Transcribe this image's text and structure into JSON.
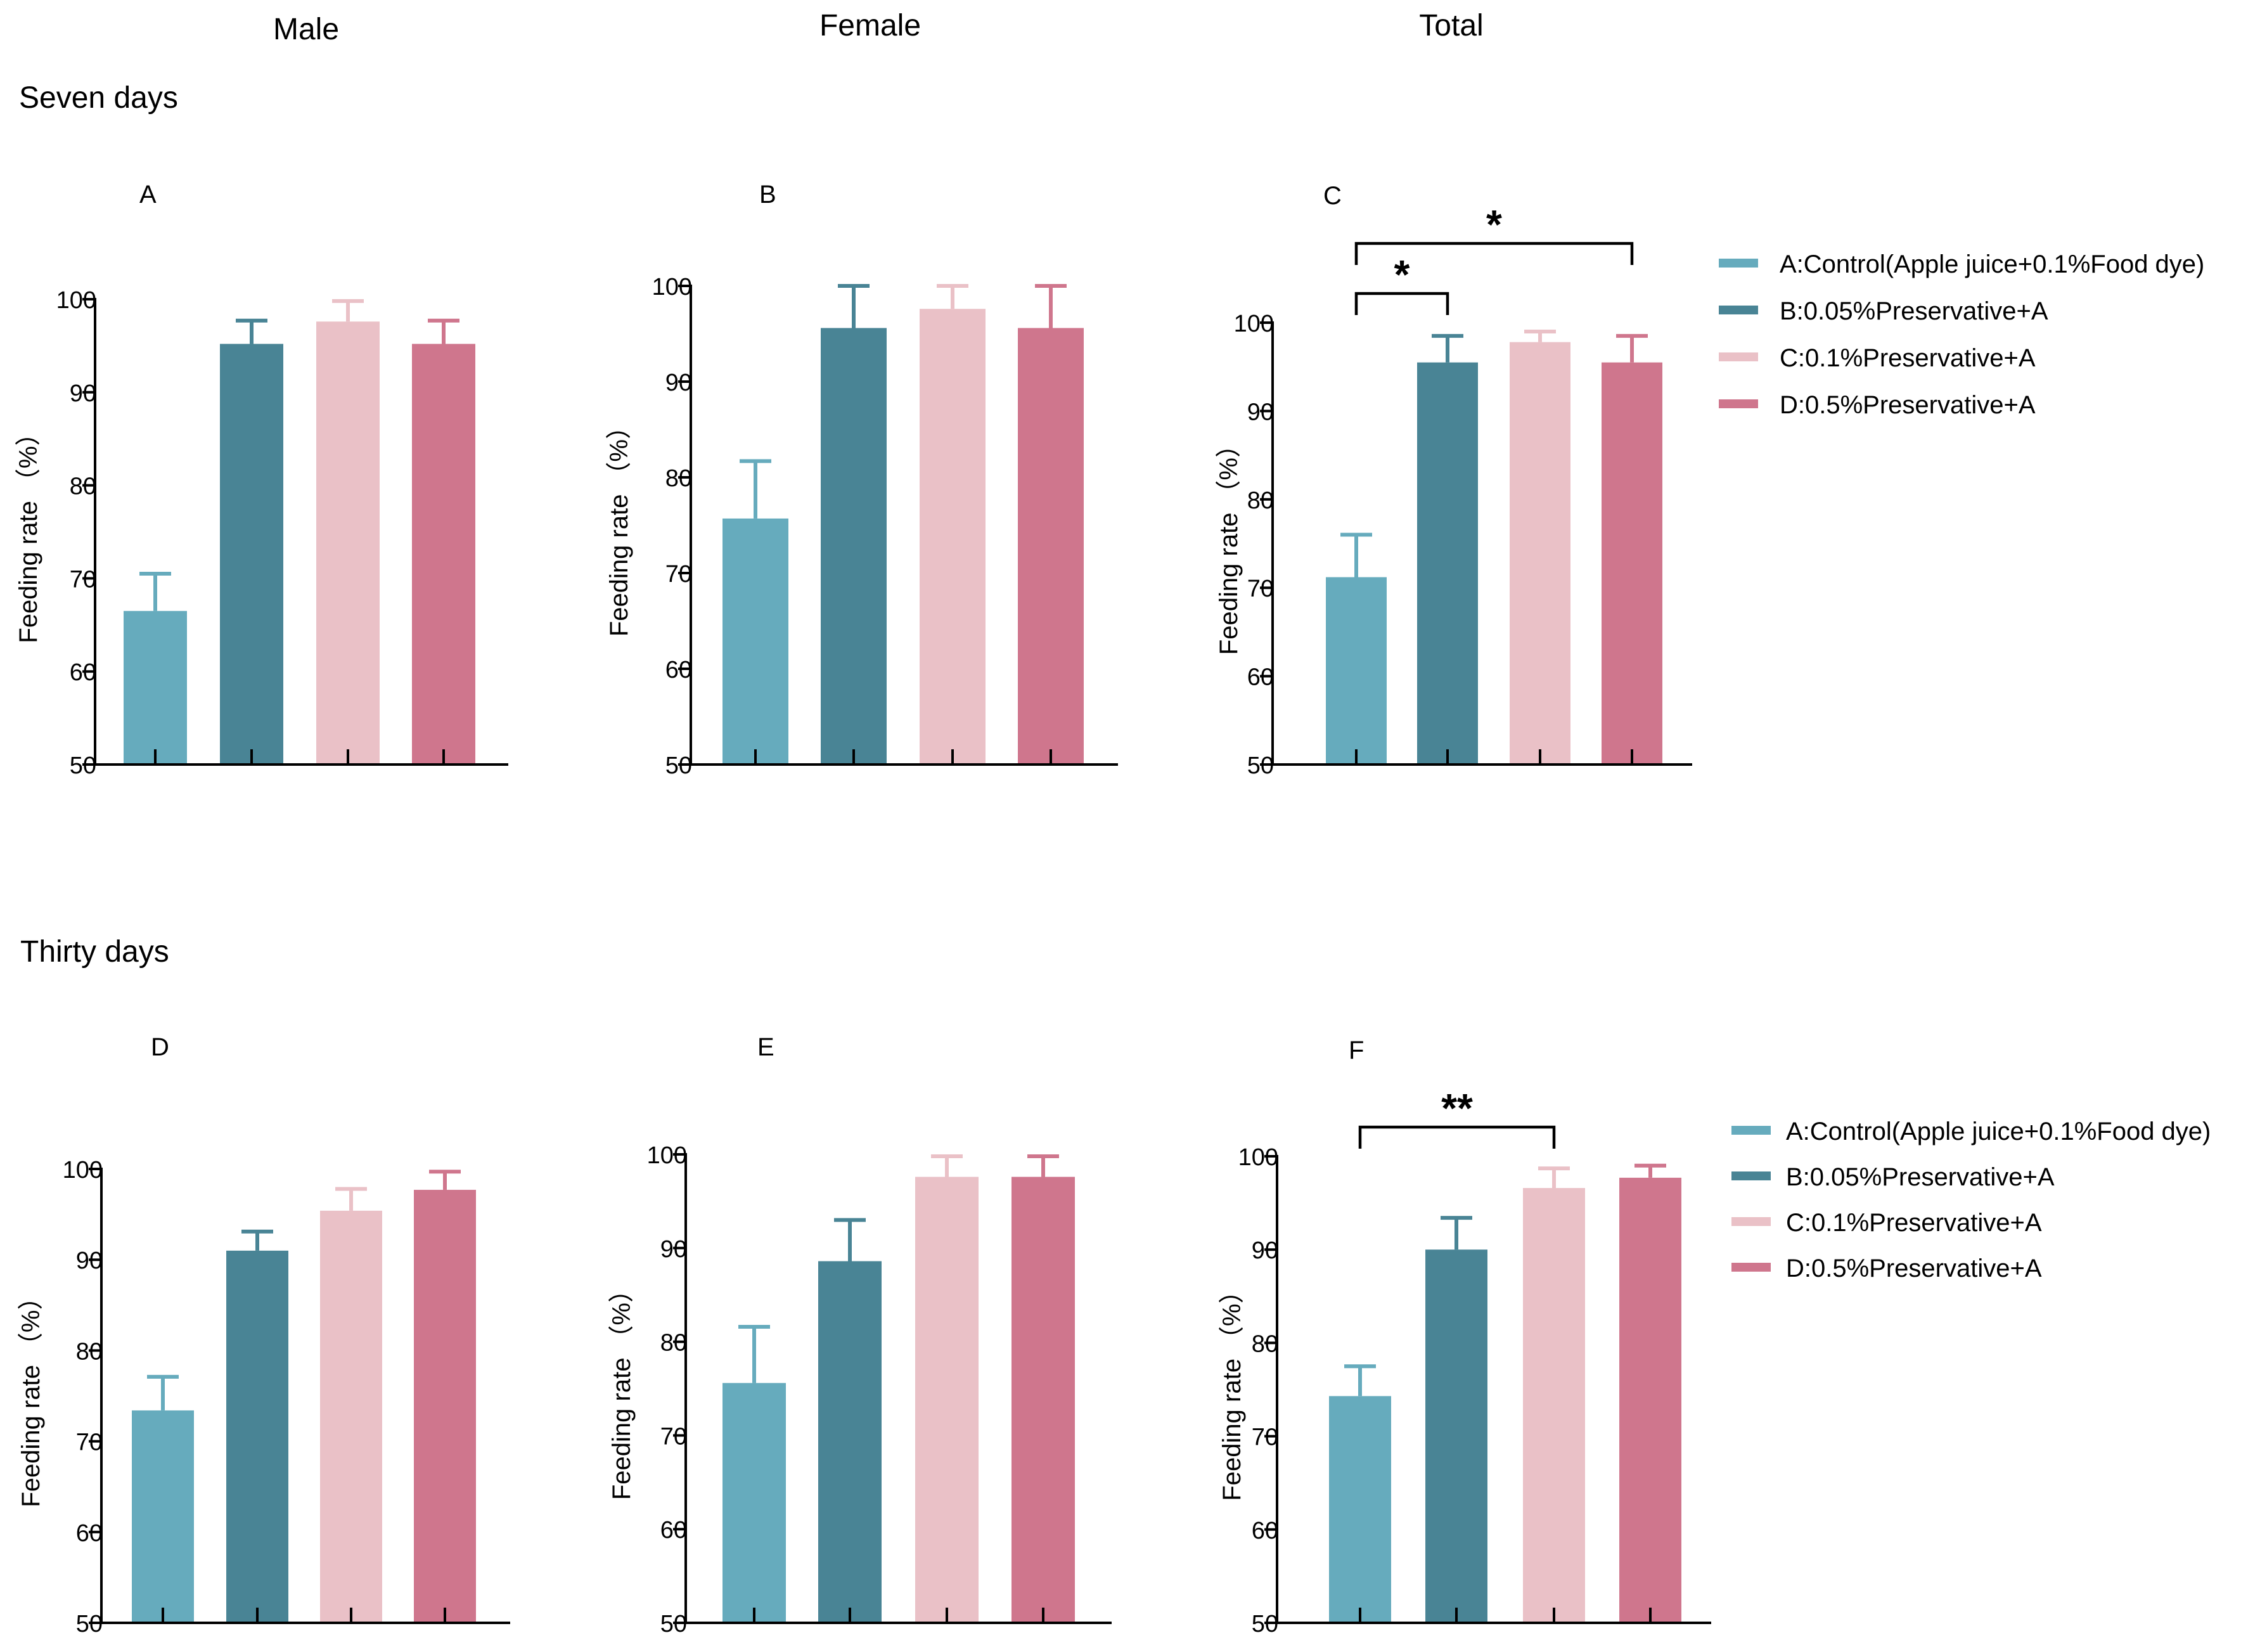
{
  "columns": [
    "Male",
    "Female",
    "Total"
  ],
  "rows": [
    "Seven days",
    "Thirty days"
  ],
  "legend": [
    {
      "label": "A:Control(Apple juice+0.1%Food dye)",
      "color": "#66abbd"
    },
    {
      "label": "B:0.05%Preservative+A",
      "color": "#498495"
    },
    {
      "label": "C:0.1%Preservative+A",
      "color": "#eac1c7"
    },
    {
      "label": "D:0.5%Preservative+A",
      "color": "#cf768d"
    }
  ],
  "chart_data": [
    {
      "panel": "A",
      "type": "bar",
      "ylabel": "Feeding rate （%）",
      "ylim": [
        50,
        100
      ],
      "yticks": [
        50,
        60,
        70,
        80,
        90,
        100
      ],
      "categories": [
        "A",
        "B",
        "C",
        "D"
      ],
      "values": [
        66.5,
        95.2,
        97.6,
        95.2
      ],
      "errors": [
        4.0,
        2.5,
        2.2,
        2.5
      ],
      "significance": []
    },
    {
      "panel": "B",
      "type": "bar",
      "ylabel": "Feeding rate （%）",
      "ylim": [
        50,
        100
      ],
      "yticks": [
        50,
        60,
        70,
        80,
        90,
        100
      ],
      "categories": [
        "A",
        "B",
        "C",
        "D"
      ],
      "values": [
        75.7,
        95.6,
        97.6,
        95.6
      ],
      "errors": [
        6.0,
        4.4,
        2.4,
        4.4
      ],
      "significance": []
    },
    {
      "panel": "C",
      "type": "bar",
      "ylabel": "Feeding rate （%）",
      "ylim": [
        50,
        100
      ],
      "yticks": [
        50,
        60,
        70,
        80,
        90,
        100
      ],
      "categories": [
        "A",
        "B",
        "C",
        "D"
      ],
      "values": [
        71.2,
        95.5,
        97.8,
        95.5
      ],
      "errors": [
        4.8,
        3.0,
        1.2,
        3.0
      ],
      "significance": [
        {
          "from": 0,
          "to": 1,
          "label": "*",
          "level": 0
        },
        {
          "from": 0,
          "to": 3,
          "label": "*",
          "level": 1
        }
      ]
    },
    {
      "panel": "D",
      "type": "bar",
      "ylabel": "Feeding rate （%）",
      "ylim": [
        50,
        100
      ],
      "yticks": [
        50,
        60,
        70,
        80,
        90,
        100
      ],
      "categories": [
        "A",
        "B",
        "C",
        "D"
      ],
      "values": [
        73.4,
        91.0,
        95.4,
        97.7
      ],
      "errors": [
        3.7,
        2.1,
        2.4,
        2.0
      ],
      "significance": []
    },
    {
      "panel": "E",
      "type": "bar",
      "ylabel": "Feeding rate （%）",
      "ylim": [
        50,
        100
      ],
      "yticks": [
        50,
        60,
        70,
        80,
        90,
        100
      ],
      "categories": [
        "A",
        "B",
        "C",
        "D"
      ],
      "values": [
        75.6,
        88.6,
        97.6,
        97.6
      ],
      "errors": [
        6.0,
        4.4,
        2.2,
        2.2
      ],
      "significance": []
    },
    {
      "panel": "F",
      "type": "bar",
      "ylabel": "Feeding rate （%）",
      "ylim": [
        50,
        100
      ],
      "yticks": [
        50,
        60,
        70,
        80,
        90,
        100
      ],
      "categories": [
        "A",
        "B",
        "C",
        "D"
      ],
      "values": [
        74.3,
        90.0,
        96.6,
        97.7
      ],
      "errors": [
        3.2,
        3.4,
        2.1,
        1.3
      ],
      "significance": [
        {
          "from": 0,
          "to": 2,
          "label": "**",
          "level": 0
        }
      ]
    }
  ]
}
